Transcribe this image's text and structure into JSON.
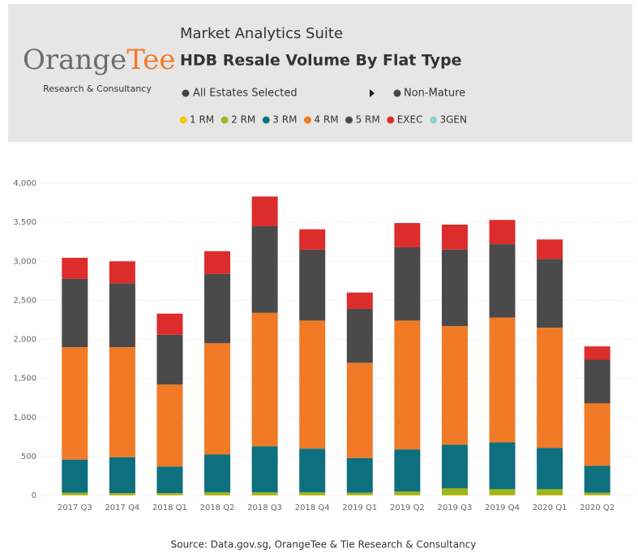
{
  "header": {
    "logo_brand": "Orange",
    "logo_accent": "Tee",
    "logo_tagline": "Research & Consultancy",
    "suite": "Market Analytics Suite",
    "filter_estates": "All Estates Selected",
    "filter_maturity": "Non-Mature"
  },
  "chart_data": {
    "type": "stacked_bar",
    "title": "HDB Resale Volume By Flat Type",
    "categories": [
      "2017 Q3",
      "2017 Q4",
      "2018 Q1",
      "2018 Q2",
      "2018 Q3",
      "2018 Q4",
      "2019 Q1",
      "2019 Q2",
      "2019 Q3",
      "2019 Q4",
      "2020 Q1",
      "2020 Q2"
    ],
    "series": [
      {
        "name": "1 RM",
        "color": "#f2c80f",
        "values": [
          5,
          5,
          5,
          5,
          5,
          5,
          5,
          5,
          5,
          5,
          5,
          5
        ]
      },
      {
        "name": "2 RM",
        "color": "#a0b519",
        "values": [
          30,
          25,
          25,
          35,
          35,
          35,
          30,
          45,
          85,
          75,
          75,
          30
        ]
      },
      {
        "name": "3 RM",
        "color": "#0e6f7e",
        "values": [
          425,
          460,
          340,
          485,
          590,
          560,
          445,
          540,
          560,
          600,
          530,
          345
        ]
      },
      {
        "name": "4 RM",
        "color": "#f07a26",
        "values": [
          1440,
          1410,
          1050,
          1425,
          1710,
          1640,
          1220,
          1650,
          1520,
          1600,
          1540,
          800
        ]
      },
      {
        "name": "5 RM",
        "color": "#4a4a4a",
        "values": [
          875,
          820,
          640,
          890,
          1110,
          910,
          690,
          940,
          980,
          940,
          880,
          560
        ]
      },
      {
        "name": "EXEC",
        "color": "#dd2c2c",
        "values": [
          270,
          280,
          270,
          290,
          380,
          260,
          210,
          310,
          320,
          310,
          250,
          170
        ]
      },
      {
        "name": "3GEN",
        "color": "#8fd3cf",
        "values": [
          0,
          0,
          0,
          0,
          0,
          0,
          0,
          0,
          0,
          0,
          0,
          0
        ]
      }
    ],
    "ylim": [
      0,
      4000
    ],
    "yticks": [
      0,
      500,
      {
        "value": 1000,
        "label": "1,000"
      },
      {
        "value": 1500,
        "label": "1,500"
      },
      {
        "value": 2000,
        "label": "2,000"
      },
      {
        "value": 2500,
        "label": "2,500"
      },
      {
        "value": 3000,
        "label": "3,000"
      },
      {
        "value": 3500,
        "label": "3,500"
      },
      {
        "value": 4000,
        "label": "4,000"
      }
    ],
    "grid": true,
    "source": "Source: Data.gov.sg, OrangeTee & Tie Research & Consultancy"
  }
}
